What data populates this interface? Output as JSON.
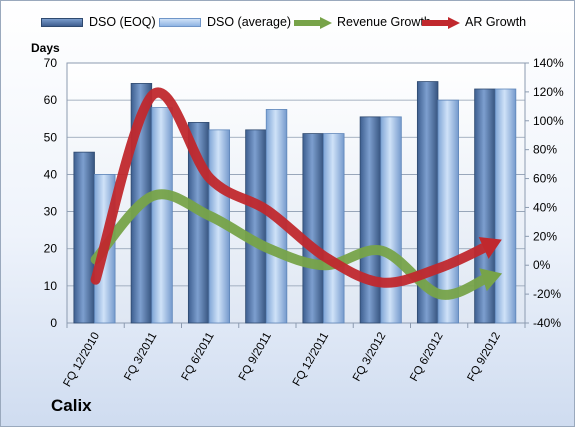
{
  "company": "Calix",
  "chart_data": {
    "type": "bar",
    "categories": [
      "FQ 12/2010",
      "FQ 3/2011",
      "FQ 6/2011",
      "FQ 9/2011",
      "FQ 12/2011",
      "FQ 3/2012",
      "FQ 6/2012",
      "FQ 9/2012"
    ],
    "ylabel": "Days",
    "ylim": [
      0,
      70
    ],
    "yticks": [
      0,
      10,
      20,
      30,
      40,
      50,
      60,
      70
    ],
    "y2lim": [
      -40,
      140
    ],
    "y2ticks": [
      "-40%",
      "-20%",
      "0%",
      "20%",
      "40%",
      "60%",
      "80%",
      "100%",
      "120%",
      "140%"
    ],
    "y2tick_values": [
      -40,
      -20,
      0,
      20,
      40,
      60,
      80,
      100,
      120,
      140
    ],
    "grid": true,
    "legend_position": "top",
    "series": [
      {
        "name": "DSO (EOQ)",
        "kind": "bar",
        "axis": "left",
        "color": "#4a6fa5",
        "values": [
          46,
          64.5,
          54,
          52,
          51,
          55.5,
          65,
          63
        ]
      },
      {
        "name": "DSO (average)",
        "kind": "bar",
        "axis": "left",
        "color": "#8fb4e3",
        "values": [
          40,
          58,
          52,
          57.5,
          51,
          55.5,
          60,
          63
        ]
      },
      {
        "name": "Revenue Growth",
        "kind": "arrow-line",
        "axis": "right",
        "color": "#77a349",
        "values": [
          4,
          48,
          34,
          12,
          0,
          10,
          -20,
          -7
        ]
      },
      {
        "name": "AR Growth",
        "kind": "arrow-line",
        "axis": "right",
        "color": "#c0282d",
        "values": [
          -10,
          118,
          60,
          38,
          6,
          -12,
          -2,
          16
        ]
      }
    ]
  }
}
